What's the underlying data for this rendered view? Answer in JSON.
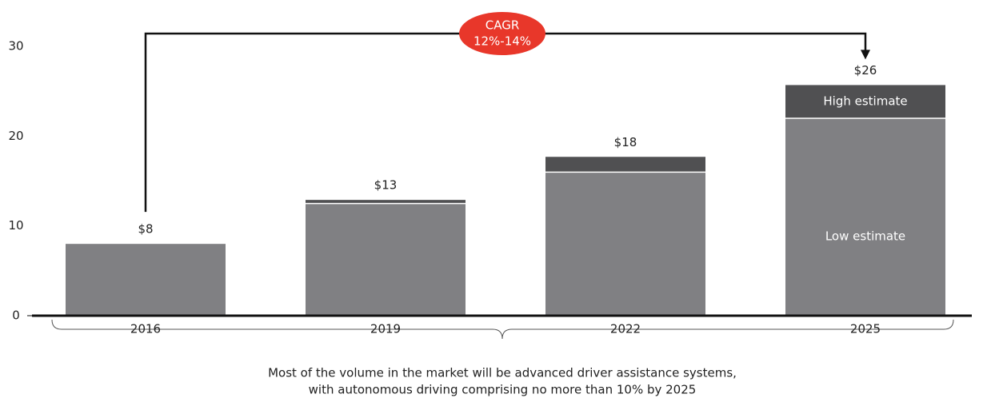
{
  "chart_data": {
    "type": "stacked_bar",
    "categories": [
      "2016",
      "2019",
      "2022",
      "2025"
    ],
    "series": [
      {
        "name": "Low estimate",
        "color": "#808083",
        "values": [
          8,
          12.5,
          16,
          22
        ]
      },
      {
        "name": "High estimate",
        "color": "#505052",
        "values": [
          0,
          0.4,
          1.7,
          3.7
        ]
      }
    ],
    "value_labels": [
      "$8",
      "$13",
      "$18",
      "$26"
    ],
    "ylim": [
      0,
      35
    ],
    "yticks": [
      0,
      10,
      20,
      30
    ],
    "annotation": [
      "CAGR",
      "12%-14%"
    ],
    "annotation_color": "#e8372a",
    "note": [
      "Most of the volume in the market will be advanced driver assistance systems,",
      "with autonomous driving comprising no more than 10% by 2025"
    ]
  }
}
